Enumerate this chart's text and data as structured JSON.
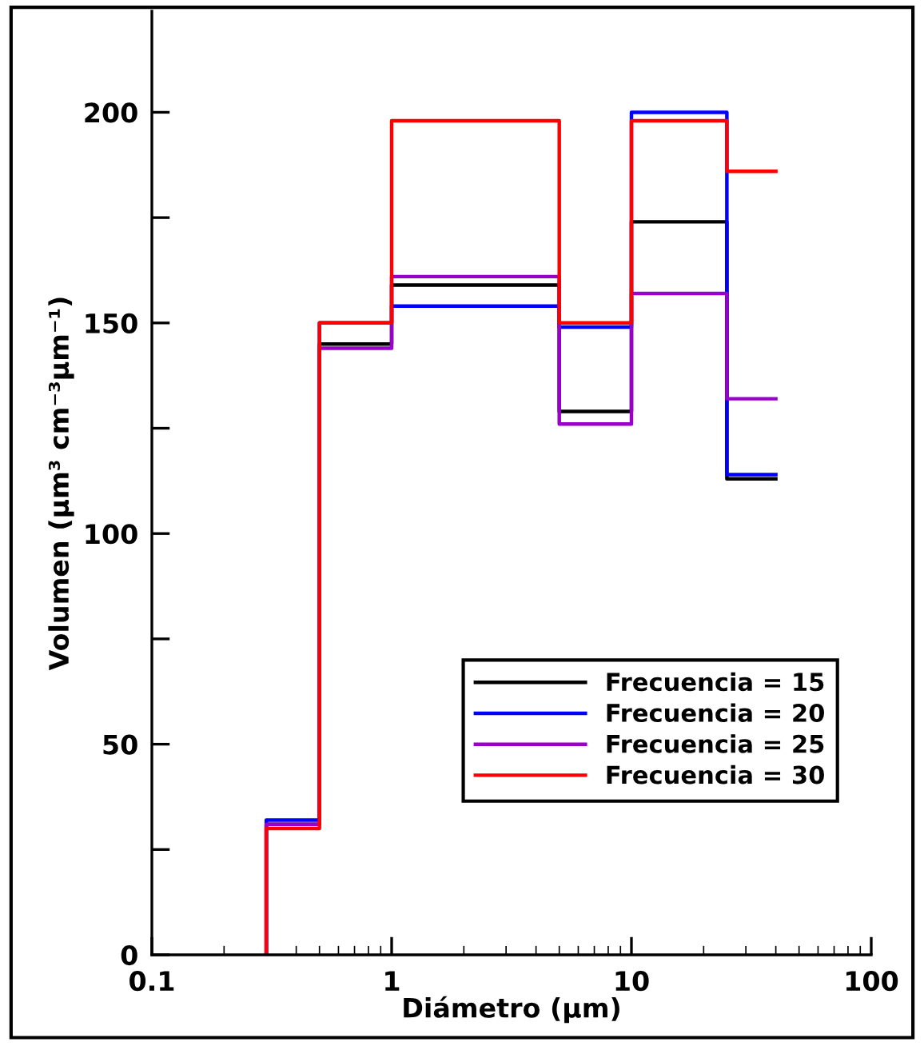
{
  "chart_data": {
    "type": "histogram",
    "xlabel": "Diámetro (µm)",
    "ylabel": "Volumen (µm³ cm⁻³µm⁻¹)",
    "bins": [
      0.3,
      0.5,
      1,
      5,
      10,
      25,
      40
    ],
    "series": [
      {
        "name": "Frecuencia = 15",
        "color": "#000000",
        "values": [
          31,
          145,
          159,
          129,
          174,
          113
        ]
      },
      {
        "name": "Frecuencia = 20",
        "color": "#0000ff",
        "values": [
          32,
          150,
          154,
          149,
          200,
          114
        ]
      },
      {
        "name": "Frecuencia = 25",
        "color": "#9900cc",
        "values": [
          31,
          144,
          161,
          126,
          157,
          132
        ]
      },
      {
        "name": "Frecuencia = 30",
        "color": "#ff0000",
        "values": [
          30,
          150,
          198,
          150,
          198,
          186
        ]
      }
    ],
    "log": "x",
    "xlim": [
      0.1,
      100
    ],
    "xticks": [
      0.1,
      1,
      10,
      100
    ],
    "ylim": [
      0,
      224
    ],
    "yticks": [
      0,
      {
        "value": 25,
        "label": null
      },
      50,
      {
        "value": 75,
        "label": null
      },
      100,
      {
        "value": 125,
        "label": null
      },
      150,
      {
        "value": 175,
        "label": null
      },
      200
    ],
    "legend": "bottom right",
    "grid": false
  }
}
